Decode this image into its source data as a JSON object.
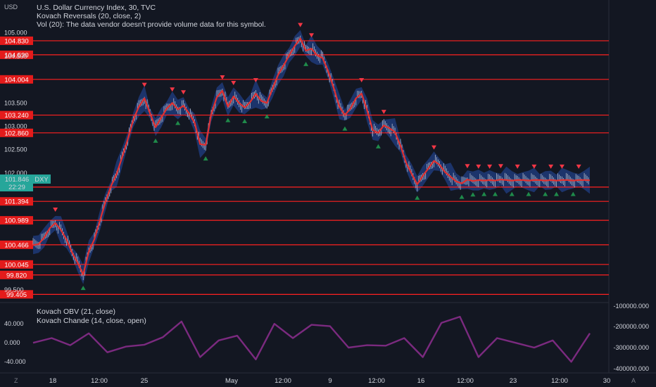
{
  "header": {
    "currency": "USD",
    "title": "U.S. Dollar Currency Index, 30, TVC",
    "indicator1": "Kovach Reversals (20, close, 2)",
    "indicator2": "Vol (20): The data vendor doesn't provide volume data for this symbol."
  },
  "lower_pane": {
    "indicator1": "Kovach OBV (21, close)",
    "indicator2": "Kovach Chande (14, close, open)"
  },
  "symbol_badge": {
    "symbol": "DXY",
    "price": "101.846",
    "countdown": "22:29"
  },
  "colors": {
    "background": "#131722",
    "level_line": "#ff2020",
    "price_line": "#e03030",
    "band": "#1f3a78",
    "candle_up": "#c7ccd6",
    "candle_down": "#c7ccd6",
    "arrow_down": "#f23645",
    "arrow_up": "#1f8a4a",
    "oscillator": "#7b2a7f",
    "badge": "#26a69a"
  },
  "footer": {
    "left_ctl": "Z",
    "right_ctl": "A"
  },
  "chart_data": [
    {
      "type": "line",
      "title": "U.S. Dollar Currency Index, 30, TVC",
      "x_tick_labels": [
        "18",
        "12:00",
        "25",
        "May",
        "12:00",
        "9",
        "12:00",
        "16",
        "12:00",
        "23",
        "12:00",
        "30"
      ],
      "y_tick_labels": [
        "105.000",
        "104.500",
        "103.500",
        "103.000",
        "102.500",
        "102.000",
        "99.500"
      ],
      "ylim": [
        99.35,
        105.1
      ],
      "x": [
        0,
        3,
        6,
        9,
        12,
        15,
        18,
        21,
        24,
        27,
        30,
        33,
        36,
        39,
        42,
        45,
        48,
        51,
        54,
        57,
        60,
        63,
        66,
        69,
        72,
        75,
        78,
        81,
        84,
        87,
        90,
        93,
        96,
        99,
        102,
        105,
        108,
        111,
        114,
        117,
        120,
        123,
        126,
        129,
        132,
        135,
        138,
        141,
        144,
        147,
        150,
        153,
        156,
        159,
        162,
        165,
        168,
        171,
        174,
        177,
        180,
        183,
        186,
        189,
        192,
        195,
        198,
        201,
        204,
        207,
        210,
        213,
        216,
        219,
        222,
        225,
        228,
        231,
        234,
        237,
        240,
        243,
        246,
        249,
        252,
        255,
        258,
        261,
        264,
        267,
        270,
        273,
        276,
        279,
        282,
        285,
        288,
        291,
        294,
        297,
        300
      ],
      "series": [
        {
          "values": [
            100.46,
            100.48,
            100.62,
            100.82,
            100.93,
            100.78,
            100.58,
            100.3,
            100.08,
            99.83,
            100.32,
            100.58,
            100.98,
            101.38,
            101.72,
            101.98,
            102.34,
            102.72,
            103.14,
            103.42,
            103.6,
            103.28,
            102.98,
            103.18,
            103.38,
            103.5,
            103.36,
            103.44,
            103.28,
            103.08,
            102.62,
            102.6,
            103.26,
            103.62,
            103.76,
            103.42,
            103.64,
            103.5,
            103.4,
            103.52,
            103.7,
            103.54,
            103.5,
            103.8,
            104.1,
            104.3,
            104.52,
            104.72,
            104.88,
            104.62,
            104.66,
            104.52,
            104.46,
            104.18,
            103.82,
            103.42,
            103.24,
            103.38,
            103.6,
            103.7,
            103.34,
            102.92,
            102.86,
            103.02,
            102.96,
            102.88,
            102.58,
            102.22,
            101.98,
            101.76,
            101.94,
            102.1,
            102.26,
            102.18,
            102.02,
            101.92,
            101.82,
            101.78,
            101.86,
            101.83,
            101.85,
            101.84,
            101.85,
            101.84,
            101.86,
            101.85,
            101.84,
            101.85,
            101.85,
            101.84,
            101.85,
            101.85,
            101.84,
            101.85,
            101.84,
            101.85,
            101.85,
            101.84,
            101.85,
            101.85,
            101.846
          ]
        }
      ],
      "horizontal_levels": [
        "104.830",
        "104.530",
        "104.004",
        "103.240",
        "102.860",
        "101.700",
        "101.394",
        "100.989",
        "100.466",
        "100.045",
        "99.820",
        "99.405"
      ]
    },
    {
      "type": "line",
      "title": "Kovach OBV (21, close)",
      "y_tick_labels": [
        "40.000",
        "0.000",
        "-40.000"
      ],
      "right_tick_labels": [
        "-100000.000",
        "-200000.000",
        "-300000.000",
        "-400000.000"
      ],
      "ylim": [
        -56,
        70
      ],
      "x": [
        0,
        10,
        20,
        30,
        40,
        50,
        60,
        70,
        80,
        90,
        100,
        110,
        120,
        130,
        140,
        150,
        160,
        170,
        180,
        190,
        200,
        210,
        220,
        230,
        240,
        250,
        260,
        270,
        280,
        290,
        300
      ],
      "series": [
        {
          "values": [
            0,
            10,
            -5,
            20,
            -20,
            -8,
            -4,
            12,
            45,
            -30,
            5,
            15,
            -35,
            40,
            10,
            38,
            35,
            -10,
            -5,
            -6,
            10,
            -30,
            42,
            55,
            -30,
            10,
            0,
            -10,
            5,
            -40,
            20
          ]
        }
      ]
    }
  ]
}
